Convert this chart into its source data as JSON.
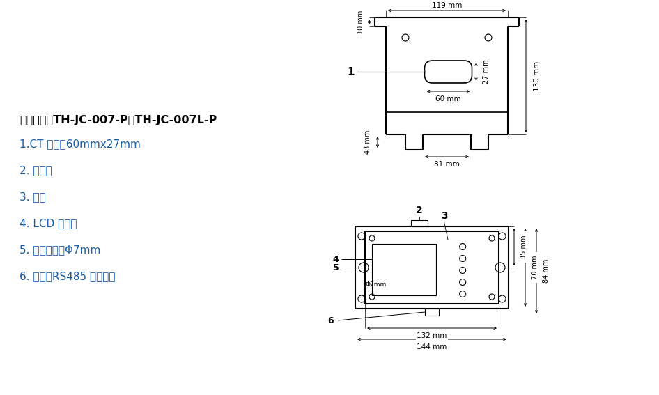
{
  "bg_color": "#ffffff",
  "line_color": "#000000",
  "text_color_black": "#000000",
  "text_color_blue": "#1a5fa8",
  "title": "闭环结构：TH-JC-007-P、TH-JC-007L-P",
  "items": [
    "1.CT 尺寸：60mmx27mm",
    "2. 指示灯",
    "3. 按键",
    "4. LCD 显示器",
    "5. 安装螺丝孔Φ7mm",
    "6. 电源、RS485 通讯接口"
  ],
  "fig_width": 9.46,
  "fig_height": 5.67
}
